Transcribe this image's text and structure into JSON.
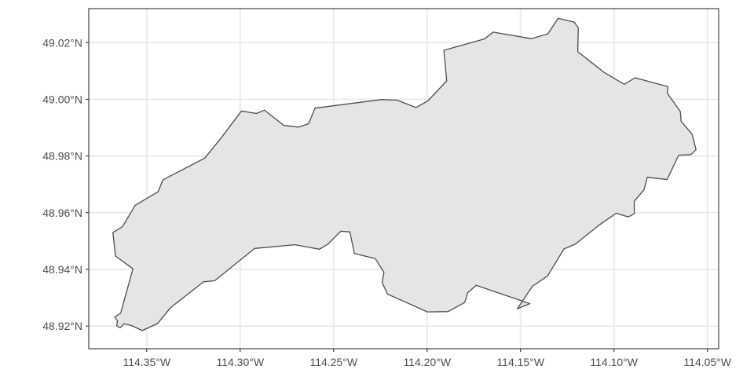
{
  "chart_data": {
    "type": "map",
    "xlim": [
      -114.381,
      -114.044
    ],
    "ylim": [
      48.912,
      49.032
    ],
    "grid": true,
    "colors": {
      "background": "#ffffff",
      "panel_border": "#333333",
      "grid": "#ebebeb",
      "polygon_fill": "#e5e5e5",
      "polygon_stroke": "#4d4d4d",
      "tick_label": "#4d4d4d"
    },
    "x_ticks": [
      {
        "value": -114.35,
        "label": "114.35°W"
      },
      {
        "value": -114.3,
        "label": "114.30°W"
      },
      {
        "value": -114.25,
        "label": "114.25°W"
      },
      {
        "value": -114.2,
        "label": "114.20°W"
      },
      {
        "value": -114.15,
        "label": "114.15°W"
      },
      {
        "value": -114.1,
        "label": "114.10°W"
      },
      {
        "value": -114.05,
        "label": "114.05°W"
      }
    ],
    "y_ticks": [
      {
        "value": 48.92,
        "label": "48.92°N"
      },
      {
        "value": 48.94,
        "label": "48.94°N"
      },
      {
        "value": 48.96,
        "label": "48.96°N"
      },
      {
        "value": 48.98,
        "label": "48.98°N"
      },
      {
        "value": 49.0,
        "label": "49.00°N"
      },
      {
        "value": 49.02,
        "label": "49.02°N"
      }
    ],
    "polygon": [
      [
        -114.3681,
        48.953
      ],
      [
        -114.3629,
        48.9551
      ],
      [
        -114.3562,
        48.9626
      ],
      [
        -114.3439,
        48.9674
      ],
      [
        -114.3413,
        48.9716
      ],
      [
        -114.3189,
        48.9793
      ],
      [
        -114.3104,
        48.9862
      ],
      [
        -114.2993,
        48.9959
      ],
      [
        -114.2913,
        48.995
      ],
      [
        -114.287,
        48.9962
      ],
      [
        -114.2766,
        48.9908
      ],
      [
        -114.2687,
        48.9902
      ],
      [
        -114.2634,
        48.9914
      ],
      [
        -114.26,
        48.9969
      ],
      [
        -114.2245,
        48.9999
      ],
      [
        -114.216,
        48.9997
      ],
      [
        -114.2059,
        48.9971
      ],
      [
        -114.1995,
        48.9995
      ],
      [
        -114.1895,
        49.0065
      ],
      [
        -114.191,
        49.0173
      ],
      [
        -114.1694,
        49.0213
      ],
      [
        -114.1647,
        49.0237
      ],
      [
        -114.1442,
        49.0214
      ],
      [
        -114.1354,
        49.0231
      ],
      [
        -114.1299,
        49.0286
      ],
      [
        -114.1212,
        49.0272
      ],
      [
        -114.1191,
        49.0252
      ],
      [
        -114.1194,
        49.0168
      ],
      [
        -114.1055,
        49.0096
      ],
      [
        -114.0945,
        49.0053
      ],
      [
        -114.0887,
        49.0076
      ],
      [
        -114.0712,
        49.0045
      ],
      [
        -114.0714,
        49.0021
      ],
      [
        -114.0645,
        48.9957
      ],
      [
        -114.0641,
        48.9922
      ],
      [
        -114.0582,
        48.9877
      ],
      [
        -114.0561,
        48.9822
      ],
      [
        -114.0589,
        48.9805
      ],
      [
        -114.0654,
        48.9803
      ],
      [
        -114.0716,
        48.9717
      ],
      [
        -114.0822,
        48.9725
      ],
      [
        -114.0839,
        48.9681
      ],
      [
        -114.0892,
        48.964
      ],
      [
        -114.0891,
        48.9597
      ],
      [
        -114.0923,
        48.9585
      ],
      [
        -114.0988,
        48.9598
      ],
      [
        -114.1078,
        48.9557
      ],
      [
        -114.1207,
        48.9489
      ],
      [
        -114.1268,
        48.9472
      ],
      [
        -114.1355,
        48.9377
      ],
      [
        -114.1437,
        48.934
      ],
      [
        -114.1517,
        48.9261
      ],
      [
        -114.145,
        48.9279
      ],
      [
        -114.1737,
        48.9344
      ],
      [
        -114.1782,
        48.9318
      ],
      [
        -114.1799,
        48.9283
      ],
      [
        -114.1887,
        48.9251
      ],
      [
        -114.1998,
        48.925
      ],
      [
        -114.2212,
        48.9313
      ],
      [
        -114.224,
        48.9353
      ],
      [
        -114.2231,
        48.939
      ],
      [
        -114.2277,
        48.9438
      ],
      [
        -114.2389,
        48.9456
      ],
      [
        -114.2413,
        48.9532
      ],
      [
        -114.2461,
        48.9535
      ],
      [
        -114.2531,
        48.9489
      ],
      [
        -114.2576,
        48.9471
      ],
      [
        -114.2707,
        48.9487
      ],
      [
        -114.2922,
        48.9474
      ],
      [
        -114.3136,
        48.936
      ],
      [
        -114.3196,
        48.9356
      ],
      [
        -114.3372,
        48.9265
      ],
      [
        -114.3442,
        48.9209
      ],
      [
        -114.3524,
        48.9184
      ],
      [
        -114.3582,
        48.9202
      ],
      [
        -114.3621,
        48.9208
      ],
      [
        -114.3642,
        48.9194
      ],
      [
        -114.3661,
        48.9201
      ],
      [
        -114.3656,
        48.9218
      ],
      [
        -114.3671,
        48.9231
      ],
      [
        -114.3639,
        48.9246
      ],
      [
        -114.3574,
        48.9402
      ],
      [
        -114.3667,
        48.9447
      ],
      [
        -114.3681,
        48.953
      ]
    ]
  }
}
